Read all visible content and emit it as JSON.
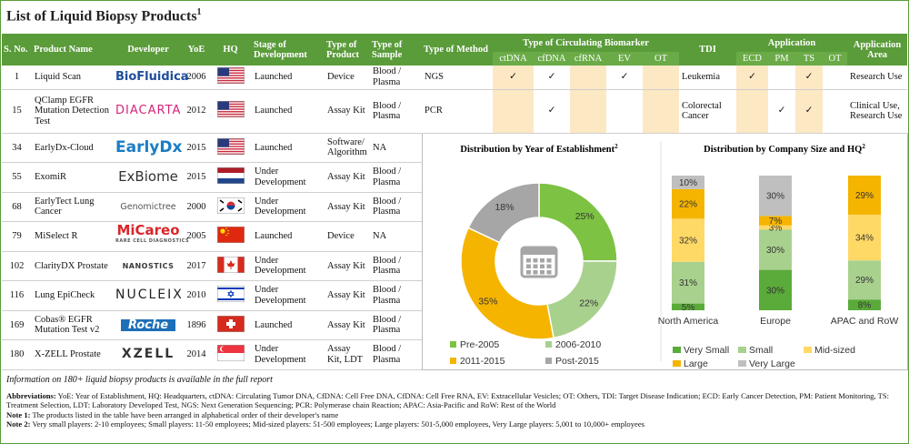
{
  "title": {
    "text": "List of Liquid Biopsy Products",
    "sup": "1"
  },
  "table": {
    "headers": {
      "sno": "S. No.",
      "product": "Product Name",
      "developer": "Developer",
      "yoe": "YoE",
      "hq": "HQ",
      "stage": "Stage of Development",
      "product_type": "Type of Product",
      "sample": "Type of Sample",
      "method": "Type of Method",
      "biomarker_group": "Type of Circulating Biomarker",
      "biomarkers": [
        "ctDNA",
        "cfDNA",
        "cfRNA",
        "EV",
        "OT"
      ],
      "tdi": "TDI",
      "application_group": "Application",
      "application": [
        "ECD",
        "PM",
        "TS",
        "OT"
      ],
      "area": "Application Area"
    },
    "rows": [
      {
        "sno": 1,
        "product": "Liquid Scan",
        "developer": "BioFluidica",
        "yoe": 2006,
        "stage": "Launched",
        "product_type": "Device",
        "sample": "Blood / Plasma",
        "method": "NGS",
        "biomarkers": [
          "✓",
          "✓",
          null,
          "✓",
          null
        ],
        "tdi": "Leukemia",
        "application": [
          "✓",
          null,
          "✓",
          null
        ],
        "area": "Research Use"
      },
      {
        "sno": 15,
        "product": "QClamp EGFR Mutation Detection Test",
        "developer": "DIACARTA",
        "yoe": 2012,
        "stage": "Launched",
        "product_type": "Assay Kit",
        "sample": "Blood / Plasma",
        "method": "PCR",
        "biomarkers": [
          null,
          "✓",
          null,
          null,
          null
        ],
        "tdi": "Colorectal Cancer",
        "application": [
          null,
          "✓",
          "✓",
          null
        ],
        "area": "Clinical Use, Research Use"
      },
      {
        "sno": 34,
        "product": "EarlyDx-Cloud",
        "developer": "EarlyDx",
        "yoe": 2015,
        "stage": "Launched",
        "product_type": "Software/ Algorithm",
        "sample": "NA"
      },
      {
        "sno": 55,
        "product": "ExomiR",
        "developer": "ExBiome",
        "yoe": 2015,
        "stage": "Under Development",
        "product_type": "Assay Kit",
        "sample": "Blood / Plasma"
      },
      {
        "sno": 68,
        "product": "EarlyTect Lung Cancer",
        "developer": "Genomictree",
        "yoe": 2000,
        "stage": "Under Development",
        "product_type": "Assay Kit",
        "sample": "Blood / Plasma"
      },
      {
        "sno": 79,
        "product": "MiSelect R",
        "developer": "MiCareo",
        "developer_tagline": "RARE CELL DIAGNOSTICS",
        "yoe": 2005,
        "stage": "Launched",
        "product_type": "Device",
        "sample": "NA"
      },
      {
        "sno": 102,
        "product": "ClarityDX Prostate",
        "developer": "NANOSTICS",
        "yoe": 2017,
        "stage": "Under Development",
        "product_type": "Assay Kit",
        "sample": "Blood / Plasma"
      },
      {
        "sno": 116,
        "product": "Lung EpiCheck",
        "developer": "NUCLEIX",
        "yoe": 2010,
        "stage": "Under Development",
        "product_type": "Assay Kit",
        "sample": "Blood / Plasma"
      },
      {
        "sno": 169,
        "product": "Cobas® EGFR Mutation Test v2",
        "developer": "Roche",
        "yoe": 1896,
        "stage": "Launched",
        "product_type": "Assay Kit",
        "sample": "Blood / Plasma"
      },
      {
        "sno": 180,
        "product": "X-ZELL Prostate",
        "developer": "XZELL",
        "yoe": 2014,
        "stage": "Under Development",
        "product_type": "Assay Kit, LDT",
        "sample": "Blood / Plasma"
      }
    ]
  },
  "chart_data": [
    {
      "type": "pie",
      "title": "Distribution by Year of Establishment",
      "title_sup": "2",
      "categories": [
        "Pre-2005",
        "2006-2010",
        "2011-2015",
        "Post-2015"
      ],
      "values": [
        25,
        22,
        35,
        18
      ],
      "value_labels": [
        "25%",
        "22%",
        "35%",
        "18%"
      ],
      "colors": [
        "#7dc243",
        "#a9d18e",
        "#f5b400",
        "#a6a6a6"
      ]
    },
    {
      "type": "bar",
      "stacked": true,
      "title": "Distribution by Company Size and HQ",
      "title_sup": "2",
      "categories": [
        "North America",
        "Europe",
        "APAC and RoW"
      ],
      "series": [
        {
          "name": "Very Small",
          "color": "#5aab3a",
          "values": [
            5,
            30,
            8
          ],
          "value_labels": [
            "5%",
            "30%",
            "8%"
          ]
        },
        {
          "name": "Small",
          "color": "#a9d18e",
          "values": [
            31,
            30,
            29
          ],
          "value_labels": [
            "31%",
            "30%",
            "29%"
          ]
        },
        {
          "name": "Mid-sized",
          "color": "#ffd966",
          "values": [
            32,
            3,
            34
          ],
          "value_labels": [
            "32%",
            "3%",
            "34%"
          ]
        },
        {
          "name": "Large",
          "color": "#f5b400",
          "values": [
            22,
            7,
            29
          ],
          "value_labels": [
            "22%",
            "7%",
            "29%"
          ]
        },
        {
          "name": "Very Large",
          "color": "#bfbfbf",
          "values": [
            10,
            30,
            0
          ],
          "value_labels": [
            "10%",
            "30%",
            null
          ]
        }
      ]
    }
  ],
  "notes": {
    "info": "Information on 180+ liquid biopsy products is available in the full report",
    "abbreviations": {
      "label": "Abbreviations:",
      "text": "YoE: Year of Establishment, HQ: Headquarters, ctDNA: Circulating Tumor DNA, CfDNA: Cell Free DNA, CfDNA: Cell Free RNA, EV: Extracellular Vesicles; OT: Others, TDI: Target Disease Indication; ECD: Early Cancer Detection, PM: Patient Monitoring, TS: Treatment Selection, LDT: Laboratory Developed Test, NGS: Next Generation Sequencing; PCR: Polymerase chain Reaction; APAC: Asia-Pacific and RoW: Rest of the World"
    },
    "note1": {
      "label": "Note 1:",
      "text": "The products listed in the table have been arranged in alphabetical order of their developer's name"
    },
    "note2": {
      "label": "Note 2:",
      "text": "Very small players: 2-10 employees; Small players: 11-50 employees; Mid-sized players: 51-500 employees; Large players: 501-5,000 employees, Very Large players: 5,001 to 10,000+ employees"
    }
  }
}
